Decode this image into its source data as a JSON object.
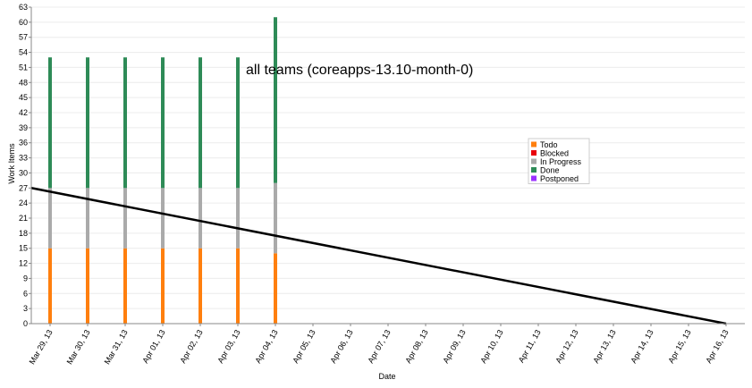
{
  "chart_data": {
    "type": "bar",
    "title": "all teams (coreapps-13.10-month-0)",
    "xlabel": "Date",
    "ylabel": "Work Items",
    "ylim": [
      0,
      63
    ],
    "yticks": [
      0,
      3,
      6,
      9,
      12,
      15,
      18,
      21,
      24,
      27,
      30,
      33,
      36,
      39,
      42,
      45,
      48,
      51,
      54,
      57,
      60,
      63
    ],
    "categories": [
      "Mar 29, 13",
      "Mar 30, 13",
      "Mar 31, 13",
      "Apr 01, 13",
      "Apr 02, 13",
      "Apr 03, 13",
      "Apr 04, 13",
      "Apr 05, 13",
      "Apr 06, 13",
      "Apr 07, 13",
      "Apr 08, 13",
      "Apr 09, 13",
      "Apr 10, 13",
      "Apr 11, 13",
      "Apr 12, 13",
      "Apr 13, 13",
      "Apr 14, 13",
      "Apr 15, 13",
      "Apr 16, 13"
    ],
    "stacked": true,
    "series": [
      {
        "name": "Todo",
        "color": "#ff7f0e",
        "values": [
          15,
          15,
          15,
          15,
          15,
          15,
          14,
          null,
          null,
          null,
          null,
          null,
          null,
          null,
          null,
          null,
          null,
          null,
          null
        ]
      },
      {
        "name": "Blocked",
        "color": "#e8000b",
        "values": [
          0,
          0,
          0,
          0,
          0,
          0,
          0,
          null,
          null,
          null,
          null,
          null,
          null,
          null,
          null,
          null,
          null,
          null,
          null
        ]
      },
      {
        "name": "In Progress",
        "color": "#aaaaaa",
        "values": [
          12,
          12,
          12,
          12,
          12,
          12,
          14,
          null,
          null,
          null,
          null,
          null,
          null,
          null,
          null,
          null,
          null,
          null,
          null
        ]
      },
      {
        "name": "Done",
        "color": "#2e8b57",
        "values": [
          26,
          26,
          26,
          26,
          26,
          26,
          33,
          null,
          null,
          null,
          null,
          null,
          null,
          null,
          null,
          null,
          null,
          null,
          null
        ]
      },
      {
        "name": "Postponed",
        "color": "#9b30ff",
        "values": [
          0,
          0,
          0,
          0,
          0,
          0,
          0,
          null,
          null,
          null,
          null,
          null,
          null,
          null,
          null,
          null,
          null,
          null,
          null
        ]
      }
    ],
    "trend_line": {
      "color": "#000000",
      "start": {
        "x": "Mar 29, 13",
        "y": 27
      },
      "end": {
        "x": "Apr 16, 13",
        "y": 0
      }
    },
    "grid": {
      "horizontal": true,
      "vertical": false
    },
    "legend_position": "right"
  }
}
